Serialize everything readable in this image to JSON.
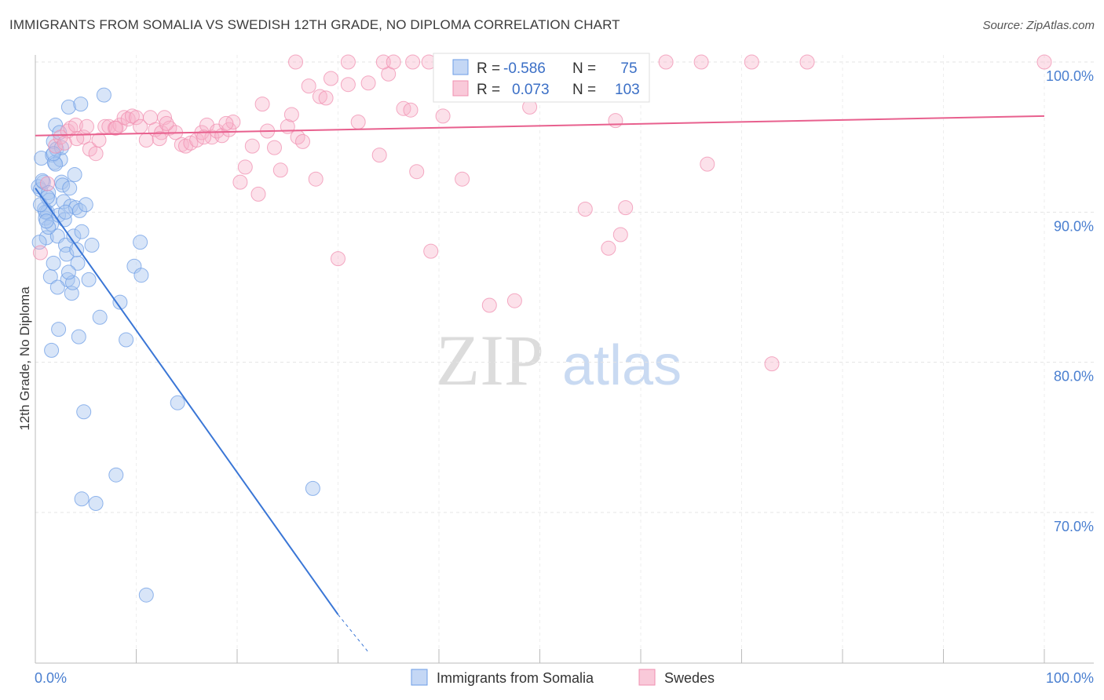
{
  "title": "IMMIGRANTS FROM SOMALIA VS SWEDISH 12TH GRADE, NO DIPLOMA CORRELATION CHART",
  "source": "Source: ZipAtlas.com",
  "watermark": {
    "zip": "ZIP",
    "atlas": "atlas"
  },
  "colors": {
    "blue": "#6d9ee6",
    "pink": "#f08fb0",
    "blue_line": "#3a76d6",
    "pink_line": "#e8608e"
  },
  "stats_box": {
    "rows": [
      {
        "r_label": "R =",
        "r_value": "-0.586",
        "n_label": "N =",
        "n_value": "75"
      },
      {
        "r_label": "R =",
        "r_value": "0.073",
        "n_label": "N =",
        "n_value": "103"
      }
    ]
  },
  "legend": {
    "items": [
      "Immigrants from Somalia",
      "Swedes"
    ]
  },
  "chart_data": {
    "type": "scatter",
    "title": "IMMIGRANTS FROM SOMALIA VS SWEDISH 12TH GRADE, NO DIPLOMA CORRELATION CHART",
    "xlabel": "",
    "ylabel": "12th Grade, No Diploma",
    "xlim": [
      0,
      100
    ],
    "ylim": [
      61.5,
      101.5
    ],
    "x_tick_labels": [
      "0.0%",
      "100.0%"
    ],
    "y_ticks": [
      {
        "value": 100,
        "label": "100.0%"
      },
      {
        "value": 90,
        "label": "90.0%"
      },
      {
        "value": 80,
        "label": "80.0%"
      },
      {
        "value": 70,
        "label": "70.0%"
      }
    ],
    "grid": true,
    "legend_position": "bottom-center",
    "series": [
      {
        "name": "Immigrants from Somalia",
        "color": "#6d9ee6",
        "trend": {
          "x": [
            0,
            30
          ],
          "y": [
            91.6,
            63.2
          ],
          "dashed_to": [
            33,
            60.7
          ]
        },
        "points": [
          [
            0.3,
            91.7
          ],
          [
            0.5,
            91.5
          ],
          [
            0.6,
            93.6
          ],
          [
            0.8,
            92.0
          ],
          [
            0.9,
            90.2
          ],
          [
            1.0,
            89.6
          ],
          [
            1.1,
            88.3
          ],
          [
            1.2,
            90.0
          ],
          [
            1.3,
            91.3
          ],
          [
            1.4,
            90.8
          ],
          [
            1.5,
            85.7
          ],
          [
            1.6,
            89.2
          ],
          [
            1.7,
            93.8
          ],
          [
            1.8,
            94.7
          ],
          [
            1.9,
            93.3
          ],
          [
            2.0,
            95.8
          ],
          [
            2.1,
            94.2
          ],
          [
            2.2,
            88.4
          ],
          [
            2.3,
            89.8
          ],
          [
            2.4,
            95.3
          ],
          [
            2.5,
            93.5
          ],
          [
            2.6,
            92.0
          ],
          [
            2.7,
            91.8
          ],
          [
            2.8,
            90.7
          ],
          [
            2.9,
            89.5
          ],
          [
            3.0,
            87.8
          ],
          [
            3.1,
            87.2
          ],
          [
            3.2,
            85.5
          ],
          [
            3.3,
            97.0
          ],
          [
            3.4,
            91.6
          ],
          [
            3.5,
            90.4
          ],
          [
            3.6,
            84.6
          ],
          [
            3.7,
            85.3
          ],
          [
            3.8,
            88.4
          ],
          [
            3.9,
            92.5
          ],
          [
            4.0,
            90.3
          ],
          [
            4.2,
            86.6
          ],
          [
            4.3,
            81.7
          ],
          [
            4.4,
            90.1
          ],
          [
            4.5,
            97.2
          ],
          [
            4.6,
            88.7
          ],
          [
            4.8,
            76.7
          ],
          [
            4.6,
            70.9
          ],
          [
            5.0,
            90.5
          ],
          [
            5.3,
            85.5
          ],
          [
            5.6,
            87.8
          ],
          [
            6.0,
            70.6
          ],
          [
            6.4,
            83.0
          ],
          [
            6.8,
            97.8
          ],
          [
            8.0,
            72.5
          ],
          [
            8.4,
            84.0
          ],
          [
            9.0,
            81.5
          ],
          [
            9.8,
            86.4
          ],
          [
            10.4,
            88.0
          ],
          [
            10.5,
            85.8
          ],
          [
            11.0,
            64.5
          ],
          [
            14.1,
            77.3
          ],
          [
            27.5,
            71.6
          ],
          [
            1.6,
            80.8
          ],
          [
            1.0,
            90.0
          ],
          [
            0.4,
            88.0
          ],
          [
            2.0,
            93.2
          ],
          [
            1.3,
            89.0
          ],
          [
            2.6,
            94.3
          ],
          [
            0.7,
            92.1
          ],
          [
            1.8,
            93.9
          ],
          [
            3.3,
            86.0
          ],
          [
            2.3,
            82.2
          ],
          [
            1.2,
            91.0
          ],
          [
            3.0,
            90.0
          ],
          [
            1.8,
            86.6
          ],
          [
            0.5,
            90.5
          ],
          [
            2.2,
            85.0
          ],
          [
            4.1,
            87.5
          ],
          [
            1.1,
            89.4
          ]
        ]
      },
      {
        "name": "Swedes",
        "color": "#f08fb0",
        "trend": {
          "x": [
            0,
            100
          ],
          "y": [
            95.1,
            96.4
          ]
        },
        "points": [
          [
            0.5,
            87.3
          ],
          [
            1.2,
            91.9
          ],
          [
            2.0,
            94.4
          ],
          [
            2.5,
            95.0
          ],
          [
            3.2,
            95.4
          ],
          [
            3.5,
            95.6
          ],
          [
            4.0,
            95.8
          ],
          [
            4.8,
            95.0
          ],
          [
            5.4,
            94.2
          ],
          [
            6.0,
            93.9
          ],
          [
            6.3,
            94.8
          ],
          [
            6.9,
            95.7
          ],
          [
            7.3,
            95.7
          ],
          [
            7.9,
            95.6
          ],
          [
            8.4,
            95.8
          ],
          [
            8.8,
            96.3
          ],
          [
            9.2,
            96.2
          ],
          [
            9.6,
            96.4
          ],
          [
            10.0,
            96.3
          ],
          [
            10.4,
            95.7
          ],
          [
            11.0,
            94.8
          ],
          [
            11.4,
            96.3
          ],
          [
            11.9,
            95.5
          ],
          [
            12.5,
            95.3
          ],
          [
            12.8,
            96.3
          ],
          [
            13.3,
            95.6
          ],
          [
            13.9,
            95.3
          ],
          [
            14.5,
            94.5
          ],
          [
            14.9,
            94.4
          ],
          [
            15.4,
            94.6
          ],
          [
            16.0,
            94.8
          ],
          [
            16.5,
            95.3
          ],
          [
            17.0,
            95.8
          ],
          [
            17.5,
            95.0
          ],
          [
            18.0,
            95.4
          ],
          [
            18.5,
            95.1
          ],
          [
            19.2,
            95.5
          ],
          [
            19.6,
            96.0
          ],
          [
            20.3,
            92.0
          ],
          [
            20.8,
            93.0
          ],
          [
            21.5,
            94.4
          ],
          [
            22.1,
            91.2
          ],
          [
            22.5,
            97.2
          ],
          [
            23.0,
            95.4
          ],
          [
            23.7,
            94.3
          ],
          [
            24.3,
            92.8
          ],
          [
            25.0,
            95.7
          ],
          [
            25.4,
            96.5
          ],
          [
            26.0,
            95.0
          ],
          [
            26.5,
            94.7
          ],
          [
            27.1,
            98.4
          ],
          [
            27.8,
            92.2
          ],
          [
            28.2,
            97.7
          ],
          [
            28.8,
            97.6
          ],
          [
            29.3,
            98.9
          ],
          [
            30.0,
            86.9
          ],
          [
            31.0,
            98.5
          ],
          [
            32.0,
            96.0
          ],
          [
            33.0,
            98.6
          ],
          [
            34.1,
            93.8
          ],
          [
            35.0,
            99.2
          ],
          [
            36.5,
            96.9
          ],
          [
            37.2,
            96.8
          ],
          [
            37.8,
            92.7
          ],
          [
            39.0,
            100.0
          ],
          [
            39.2,
            87.4
          ],
          [
            40.4,
            96.4
          ],
          [
            41.2,
            100.0
          ],
          [
            42.3,
            92.2
          ],
          [
            43.5,
            100.0
          ],
          [
            45.0,
            83.8
          ],
          [
            47.0,
            100.0
          ],
          [
            47.5,
            84.1
          ],
          [
            49.0,
            97.0
          ],
          [
            52.0,
            100.0
          ],
          [
            54.0,
            100.0
          ],
          [
            54.5,
            90.2
          ],
          [
            56.0,
            100.0
          ],
          [
            56.8,
            87.6
          ],
          [
            57.5,
            96.1
          ],
          [
            58.0,
            88.5
          ],
          [
            58.5,
            90.3
          ],
          [
            60.0,
            100.0
          ],
          [
            62.5,
            100.0
          ],
          [
            66.0,
            100.0
          ],
          [
            66.6,
            93.2
          ],
          [
            71.0,
            100.0
          ],
          [
            73.0,
            79.9
          ],
          [
            76.5,
            100.0
          ],
          [
            100.0,
            100.0
          ],
          [
            25.8,
            100.0
          ],
          [
            31.0,
            100.0
          ],
          [
            34.5,
            100.0
          ],
          [
            35.5,
            100.0
          ],
          [
            37.4,
            100.0
          ],
          [
            16.7,
            95.0
          ],
          [
            8.0,
            95.6
          ],
          [
            5.1,
            95.7
          ],
          [
            4.1,
            94.9
          ],
          [
            2.9,
            94.6
          ],
          [
            12.3,
            94.9
          ],
          [
            13.0,
            95.9
          ],
          [
            18.9,
            95.9
          ]
        ]
      }
    ]
  }
}
